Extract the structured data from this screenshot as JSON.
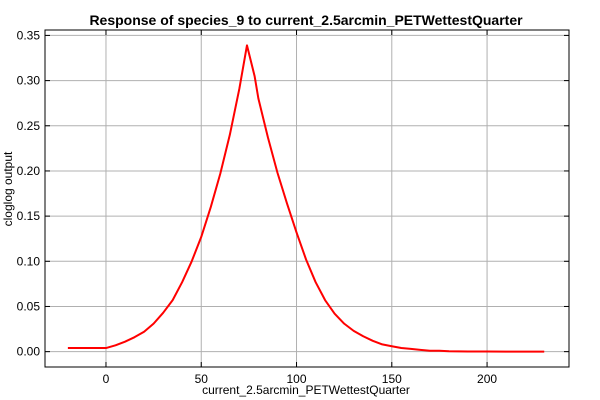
{
  "chart_data": {
    "type": "line",
    "title": "Response of species_9 to current_2.5arcmin_PETWettestQuarter",
    "xlabel": "current_2.5arcmin_PETWettestQuarter",
    "ylabel": "cloglog output",
    "xlim": [
      -32,
      243
    ],
    "ylim": [
      -0.017,
      0.356
    ],
    "xticks": [
      0,
      50,
      100,
      150,
      200
    ],
    "xtick_labels": [
      "0",
      "50",
      "100",
      "150",
      "200"
    ],
    "yticks": [
      0.0,
      0.05,
      0.1,
      0.15,
      0.2,
      0.25,
      0.3,
      0.35
    ],
    "ytick_labels": [
      "0.00",
      "0.05",
      "0.10",
      "0.15",
      "0.20",
      "0.25",
      "0.30",
      "0.35"
    ],
    "grid": true,
    "series": [
      {
        "color": "#ff0000",
        "x": [
          -20,
          0,
          5,
          10,
          15,
          20,
          25,
          30,
          35,
          40,
          45,
          50,
          55,
          60,
          65,
          70,
          74,
          78,
          80,
          85,
          90,
          95,
          100,
          105,
          110,
          115,
          120,
          125,
          130,
          135,
          140,
          145,
          150,
          155,
          160,
          165,
          170,
          175,
          180,
          185,
          190,
          200,
          210,
          220,
          230
        ],
        "y": [
          0.004,
          0.004,
          0.007,
          0.011,
          0.016,
          0.022,
          0.031,
          0.043,
          0.057,
          0.077,
          0.1,
          0.127,
          0.16,
          0.197,
          0.24,
          0.291,
          0.339,
          0.305,
          0.28,
          0.237,
          0.198,
          0.164,
          0.132,
          0.102,
          0.077,
          0.057,
          0.042,
          0.031,
          0.023,
          0.017,
          0.012,
          0.008,
          0.006,
          0.004,
          0.003,
          0.002,
          0.001,
          0.001,
          0.0005,
          0.0003,
          0.0002,
          0.0001,
          0.0,
          0.0,
          0.0
        ]
      }
    ]
  }
}
